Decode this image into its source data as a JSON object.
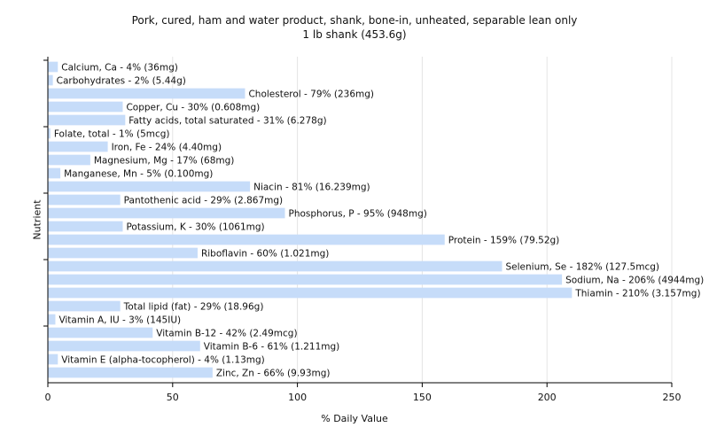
{
  "chart_data": {
    "type": "bar",
    "orientation": "horizontal",
    "title": "Pork, cured, ham and water product, shank, bone-in, unheated, separable lean only",
    "subtitle": "1 lb shank (453.6g)",
    "xlabel": "% Daily Value",
    "ylabel": "Nutrient",
    "xlim": [
      0,
      250
    ],
    "xticks": [
      0,
      50,
      100,
      150,
      200,
      250
    ],
    "grid": true,
    "bar_color": "#c6dcf9",
    "bars": [
      {
        "value": 4,
        "label": "Calcium, Ca - 4% (36mg)"
      },
      {
        "value": 2,
        "label": "Carbohydrates - 2% (5.44g)"
      },
      {
        "value": 79,
        "label": "Cholesterol - 79% (236mg)"
      },
      {
        "value": 30,
        "label": "Copper, Cu - 30% (0.608mg)"
      },
      {
        "value": 31,
        "label": "Fatty acids, total saturated - 31% (6.278g)"
      },
      {
        "value": 1,
        "label": "Folate, total - 1% (5mcg)"
      },
      {
        "value": 24,
        "label": "Iron, Fe - 24% (4.40mg)"
      },
      {
        "value": 17,
        "label": "Magnesium, Mg - 17% (68mg)"
      },
      {
        "value": 5,
        "label": "Manganese, Mn - 5% (0.100mg)"
      },
      {
        "value": 81,
        "label": "Niacin - 81% (16.239mg)"
      },
      {
        "value": 29,
        "label": "Pantothenic acid - 29% (2.867mg)"
      },
      {
        "value": 95,
        "label": "Phosphorus, P - 95% (948mg)"
      },
      {
        "value": 30,
        "label": "Potassium, K - 30% (1061mg)"
      },
      {
        "value": 159,
        "label": "Protein - 159% (79.52g)"
      },
      {
        "value": 60,
        "label": "Riboflavin - 60% (1.021mg)"
      },
      {
        "value": 182,
        "label": "Selenium, Se - 182% (127.5mcg)"
      },
      {
        "value": 206,
        "label": "Sodium, Na - 206% (4944mg)"
      },
      {
        "value": 210,
        "label": "Thiamin - 210% (3.157mg)"
      },
      {
        "value": 29,
        "label": "Total lipid (fat) - 29% (18.96g)"
      },
      {
        "value": 3,
        "label": "Vitamin A, IU - 3% (145IU)"
      },
      {
        "value": 42,
        "label": "Vitamin B-12 - 42% (2.49mcg)"
      },
      {
        "value": 61,
        "label": "Vitamin B-6 - 61% (1.211mg)"
      },
      {
        "value": 4,
        "label": "Vitamin E (alpha-tocopherol) - 4% (1.13mg)"
      },
      {
        "value": 66,
        "label": "Zinc, Zn - 66% (9.93mg)"
      }
    ]
  }
}
